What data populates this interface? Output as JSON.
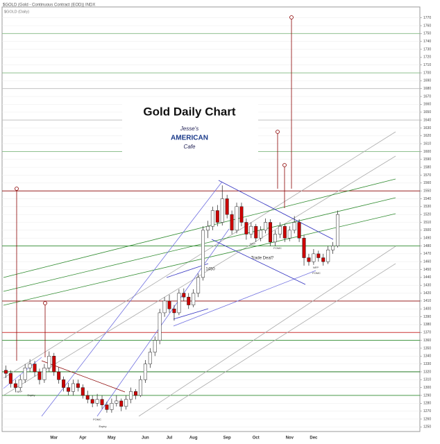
{
  "chart_data": {
    "type": "candlestick",
    "title": "Gold Daily Chart",
    "header": "$GOLD (Gold - Continuous Contract (EOD)) INDX",
    "subheader": "$GOLD (Daily)",
    "logo": [
      "Jesse's",
      "AMERICAN",
      "Cafe"
    ],
    "categories": [
      null,
      null,
      null,
      null,
      null,
      null,
      null,
      null,
      null,
      null,
      "Mar",
      null,
      null,
      null,
      null,
      null,
      "Apr",
      null,
      null,
      null,
      null,
      null,
      "May",
      null,
      null,
      null,
      null,
      null,
      null,
      "Jun",
      null,
      null,
      null,
      null,
      "Jul",
      null,
      null,
      null,
      null,
      "Aug",
      null,
      null,
      null,
      null,
      null,
      null,
      "Sep",
      null,
      null,
      null,
      null,
      null,
      "Oct",
      null,
      null,
      null,
      null,
      null,
      null,
      "Nov",
      null,
      null,
      null,
      null,
      "Dec",
      null,
      null,
      null,
      null,
      null
    ],
    "open": [
      1322,
      1318,
      1305,
      1300,
      1310,
      1325,
      1330,
      1320,
      1310,
      1325,
      1340,
      1320,
      1310,
      1300,
      1295,
      1305,
      1300,
      1290,
      1285,
      1280,
      1285,
      1278,
      1272,
      1280,
      1283,
      1276,
      1285,
      1295,
      1290,
      1310,
      1330,
      1345,
      1360,
      1395,
      1410,
      1400,
      1395,
      1420,
      1415,
      1405,
      1420,
      1440,
      1500,
      1505,
      1525,
      1510,
      1540,
      1520,
      1500,
      1530,
      1510,
      1495,
      1505,
      1490,
      1500,
      1510,
      1485,
      1495,
      1505,
      1490,
      1500,
      1510,
      1490,
      1465,
      1460,
      1470,
      1465,
      1460,
      1475,
      1480
    ],
    "high": [
      1328,
      1322,
      1310,
      1316,
      1330,
      1336,
      1334,
      1324,
      1330,
      1346,
      1344,
      1326,
      1314,
      1306,
      1310,
      1310,
      1304,
      1296,
      1290,
      1292,
      1290,
      1282,
      1286,
      1290,
      1286,
      1290,
      1300,
      1298,
      1315,
      1335,
      1350,
      1365,
      1400,
      1415,
      1418,
      1405,
      1425,
      1426,
      1420,
      1425,
      1445,
      1505,
      1512,
      1530,
      1532,
      1557,
      1545,
      1525,
      1535,
      1535,
      1515,
      1510,
      1508,
      1505,
      1515,
      1514,
      1500,
      1510,
      1508,
      1505,
      1518,
      1514,
      1494,
      1470,
      1476,
      1474,
      1470,
      1480,
      1485,
      1525
    ],
    "low": [
      1312,
      1300,
      1294,
      1296,
      1306,
      1320,
      1314,
      1304,
      1306,
      1320,
      1315,
      1305,
      1295,
      1290,
      1290,
      1295,
      1286,
      1280,
      1275,
      1276,
      1273,
      1268,
      1268,
      1276,
      1270,
      1272,
      1280,
      1285,
      1288,
      1306,
      1325,
      1340,
      1355,
      1390,
      1395,
      1385,
      1392,
      1410,
      1400,
      1402,
      1415,
      1436,
      1490,
      1500,
      1505,
      1506,
      1515,
      1495,
      1496,
      1505,
      1488,
      1490,
      1485,
      1486,
      1496,
      1480,
      1480,
      1490,
      1485,
      1486,
      1496,
      1485,
      1455,
      1455,
      1456,
      1460,
      1455,
      1457,
      1470,
      1478
    ],
    "close": [
      1318,
      1305,
      1300,
      1310,
      1325,
      1330,
      1320,
      1310,
      1325,
      1340,
      1320,
      1310,
      1300,
      1295,
      1305,
      1300,
      1290,
      1285,
      1280,
      1285,
      1278,
      1272,
      1280,
      1283,
      1276,
      1285,
      1295,
      1290,
      1310,
      1330,
      1345,
      1360,
      1395,
      1410,
      1400,
      1395,
      1420,
      1415,
      1405,
      1420,
      1440,
      1500,
      1505,
      1525,
      1510,
      1540,
      1520,
      1500,
      1530,
      1510,
      1495,
      1505,
      1490,
      1500,
      1510,
      1485,
      1495,
      1505,
      1490,
      1500,
      1510,
      1490,
      1465,
      1460,
      1470,
      1465,
      1460,
      1475,
      1480,
      1520
    ],
    "up_color": "#ffffff",
    "down_color": "#cc0000",
    "ylim": [
      1245,
      1775
    ],
    "yticks": [
      1250,
      1260,
      1270,
      1280,
      1290,
      1300,
      1310,
      1320,
      1330,
      1340,
      1350,
      1360,
      1370,
      1380,
      1390,
      1400,
      1410,
      1420,
      1430,
      1440,
      1450,
      1460,
      1470,
      1480,
      1490,
      1500,
      1510,
      1520,
      1530,
      1540,
      1550,
      1560,
      1570,
      1580,
      1590,
      1600,
      1610,
      1620,
      1630,
      1640,
      1650,
      1660,
      1670,
      1680,
      1690,
      1700,
      1710,
      1720,
      1730,
      1740,
      1750,
      1760,
      1770
    ],
    "grid": true,
    "levels": [
      {
        "value": 1750,
        "color": "#7fb87f"
      },
      {
        "value": 1700,
        "color": "#7fb87f"
      },
      {
        "value": 1680,
        "color": "#bbbbbb"
      },
      {
        "value": 1640,
        "color": "#bbbbbb"
      },
      {
        "value": 1600,
        "color": "#7fb87f"
      },
      {
        "value": 1550,
        "color": "#8b0000"
      },
      {
        "value": 1480,
        "color": "#2e8b2e"
      },
      {
        "value": 1410,
        "color": "#8b0000"
      },
      {
        "value": 1370,
        "color": "#cc3333"
      },
      {
        "value": 1360,
        "color": "#2e8b2e"
      },
      {
        "value": 1320,
        "color": "#006400"
      },
      {
        "value": 1290,
        "color": "#2e8b2e"
      }
    ],
    "annotations": [
      "1450",
      "Trade Deal?",
      "NFP",
      "FOMC",
      "Expiry",
      "NFP",
      "FOMC",
      "Expiry",
      "NFP",
      "FOMC"
    ]
  }
}
